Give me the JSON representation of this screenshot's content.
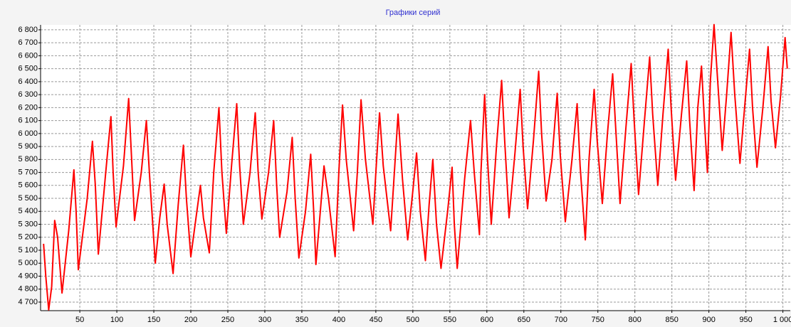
{
  "chart_data": {
    "type": "line",
    "title": "Графики серий",
    "series": [
      {
        "name": null,
        "color": "#ff0000",
        "x": [
          1,
          4,
          8,
          12,
          16,
          20,
          26,
          35,
          42,
          45,
          48,
          60,
          67,
          71,
          75,
          85,
          92,
          95,
          99,
          109,
          116,
          120,
          124,
          133,
          140,
          144,
          152,
          158,
          164,
          168,
          176,
          183,
          190,
          194,
          200,
          207,
          213,
          217,
          225,
          231,
          238,
          242,
          248,
          255,
          262,
          266,
          271,
          280,
          287,
          291,
          296,
          305,
          312,
          316,
          320,
          330,
          337,
          341,
          346,
          355,
          362,
          366,
          369,
          375,
          380,
          386,
          395,
          400,
          405,
          410,
          420,
          425,
          430,
          436,
          446,
          450,
          455,
          460,
          470,
          475,
          480,
          486,
          493,
          499,
          505,
          510,
          517,
          522,
          527,
          532,
          538,
          547,
          553,
          556,
          560,
          570,
          578,
          583,
          590,
          592,
          597,
          601,
          606,
          613,
          620,
          624,
          630,
          638,
          645,
          649,
          655,
          663,
          670,
          674,
          680,
          688,
          695,
          699,
          706,
          715,
          722,
          726,
          733,
          738,
          745,
          749,
          756,
          763,
          770,
          774,
          780,
          788,
          795,
          799,
          805,
          813,
          820,
          824,
          831,
          838,
          845,
          849,
          855,
          863,
          870,
          874,
          880,
          885,
          890,
          894,
          898,
          902,
          907,
          912,
          918,
          924,
          930,
          935,
          942,
          949,
          955,
          959,
          965,
          973,
          980,
          984,
          990,
          997,
          1003,
          1006
        ],
        "values": [
          5150,
          4900,
          4640,
          4820,
          5330,
          5200,
          4770,
          5250,
          5720,
          5400,
          4950,
          5500,
          5940,
          5600,
          5070,
          5700,
          6130,
          5700,
          5280,
          5750,
          6270,
          5800,
          5330,
          5700,
          6100,
          5700,
          5000,
          5350,
          5610,
          5300,
          4920,
          5450,
          5910,
          5500,
          5050,
          5350,
          5600,
          5350,
          5080,
          5700,
          6200,
          5700,
          5230,
          5750,
          6230,
          5750,
          5300,
          5700,
          6160,
          5700,
          5340,
          5700,
          6100,
          5600,
          5200,
          5550,
          5970,
          5500,
          5040,
          5400,
          5840,
          5400,
          4990,
          5400,
          5750,
          5500,
          5050,
          5700,
          6220,
          5800,
          5250,
          5700,
          6260,
          5800,
          5300,
          5700,
          6160,
          5750,
          5250,
          5700,
          6150,
          5650,
          5180,
          5500,
          5850,
          5400,
          5020,
          5450,
          5800,
          5300,
          4960,
          5400,
          5740,
          5300,
          4960,
          5650,
          6100,
          5700,
          5220,
          5700,
          6300,
          5800,
          5300,
          5900,
          6410,
          5950,
          5350,
          5850,
          6340,
          5900,
          5420,
          5950,
          6480,
          6000,
          5480,
          5800,
          6310,
          5850,
          5320,
          5800,
          6230,
          5750,
          5180,
          5800,
          6340,
          5950,
          5460,
          6000,
          6460,
          6050,
          5460,
          6050,
          6540,
          6100,
          5530,
          6100,
          6590,
          6150,
          5600,
          6150,
          6650,
          6200,
          5640,
          6150,
          6560,
          6100,
          5560,
          6200,
          6520,
          6100,
          5700,
          6400,
          6840,
          6400,
          5870,
          6300,
          6780,
          6300,
          5770,
          6250,
          6650,
          6200,
          5740,
          6200,
          6670,
          6250,
          5890,
          6300,
          6740,
          6500
        ]
      }
    ],
    "xlim": [
      -3,
      1010
    ],
    "xticks": [
      50,
      100,
      150,
      200,
      250,
      300,
      350,
      400,
      450,
      500,
      550,
      600,
      650,
      700,
      750,
      800,
      850,
      900,
      950,
      {
        "value": 1000,
        "label": "1 000"
      }
    ],
    "ylim": [
      4634,
      6838
    ],
    "yticks": [
      {
        "value": 4700,
        "label": "4 700"
      },
      {
        "value": 4800,
        "label": "4 800"
      },
      {
        "value": 4900,
        "label": "4 900"
      },
      {
        "value": 5000,
        "label": "5 000"
      },
      {
        "value": 5100,
        "label": "5 100"
      },
      {
        "value": 5200,
        "label": "5 200"
      },
      {
        "value": 5300,
        "label": "5 300"
      },
      {
        "value": 5400,
        "label": "5 400"
      },
      {
        "value": 5500,
        "label": "5 500"
      },
      {
        "value": 5600,
        "label": "5 600"
      },
      {
        "value": 5700,
        "label": "5 700"
      },
      {
        "value": 5800,
        "label": "5 800"
      },
      {
        "value": 5900,
        "label": "5 900"
      },
      {
        "value": 6000,
        "label": "6 000"
      },
      {
        "value": 6100,
        "label": "6 100"
      },
      {
        "value": 6200,
        "label": "6 200"
      },
      {
        "value": 6300,
        "label": "6 300"
      },
      {
        "value": 6400,
        "label": "6 400"
      },
      {
        "value": 6500,
        "label": "6 500"
      },
      {
        "value": 6600,
        "label": "6 600"
      },
      {
        "value": 6700,
        "label": "6 700"
      },
      {
        "value": 6800,
        "label": "6 800"
      }
    ],
    "grid": true
  }
}
